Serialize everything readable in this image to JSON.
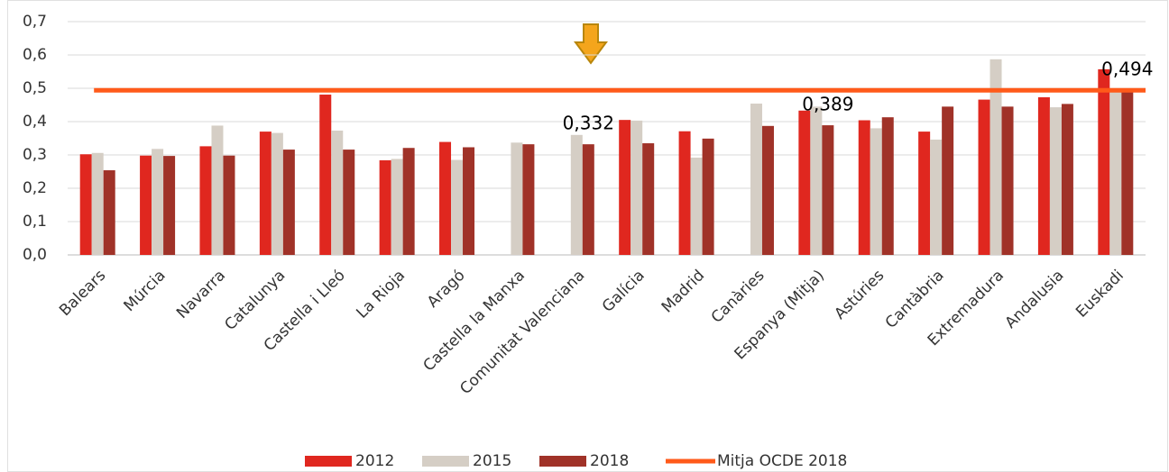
{
  "chart_data": {
    "type": "bar",
    "categories": [
      "Balears",
      "Múrcia",
      "Navarra",
      "Catalunya",
      "Castella i Lleó",
      "La Rioja",
      "Aragó",
      "Castella la Manxa",
      "Comunitat Valenciana",
      "Galícia",
      "Madrid",
      "Canàries",
      "Espanya (Mitja)",
      "Astúries",
      "Cantàbria",
      "Extremadura",
      "Andalusia",
      "Euskadi"
    ],
    "series": [
      {
        "name": "2012",
        "color": "#e0271f",
        "values": [
          0.302,
          0.298,
          0.326,
          0.37,
          0.481,
          0.284,
          0.339,
          null,
          null,
          0.405,
          0.371,
          null,
          0.433,
          0.404,
          0.37,
          0.466,
          0.473,
          0.557
        ]
      },
      {
        "name": "2015",
        "color": "#d5cec5",
        "values": [
          0.306,
          0.318,
          0.388,
          0.366,
          0.373,
          0.288,
          0.285,
          0.337,
          0.36,
          0.403,
          0.292,
          0.454,
          0.445,
          0.38,
          0.346,
          0.587,
          0.443,
          0.5
        ]
      },
      {
        "name": "2018",
        "color": "#a03228",
        "values": [
          0.254,
          0.297,
          0.298,
          0.316,
          0.316,
          0.321,
          0.323,
          0.332,
          0.332,
          0.335,
          0.349,
          0.387,
          0.389,
          0.413,
          0.445,
          0.445,
          0.453,
          0.494
        ],
        "value_labels": [
          null,
          null,
          null,
          null,
          null,
          null,
          null,
          null,
          "0,332",
          null,
          null,
          null,
          "0,389",
          null,
          null,
          null,
          null,
          "0,494"
        ]
      }
    ],
    "reference_line": {
      "name": "Mitja OCDE 2018",
      "value": 0.494,
      "color": "#ff5a1a"
    },
    "ylim": [
      0,
      0.7
    ],
    "yticks": [
      {
        "value": 0,
        "label": "0,0"
      },
      {
        "value": 0.1,
        "label": "0,1"
      },
      {
        "value": 0.2,
        "label": "0,2"
      },
      {
        "value": 0.3,
        "label": "0,3"
      },
      {
        "value": 0.4,
        "label": "0,4"
      },
      {
        "value": 0.5,
        "label": "0,5"
      },
      {
        "value": 0.6,
        "label": "0,6"
      },
      {
        "value": 0.7,
        "label": "0,7"
      }
    ],
    "grid": true
  }
}
